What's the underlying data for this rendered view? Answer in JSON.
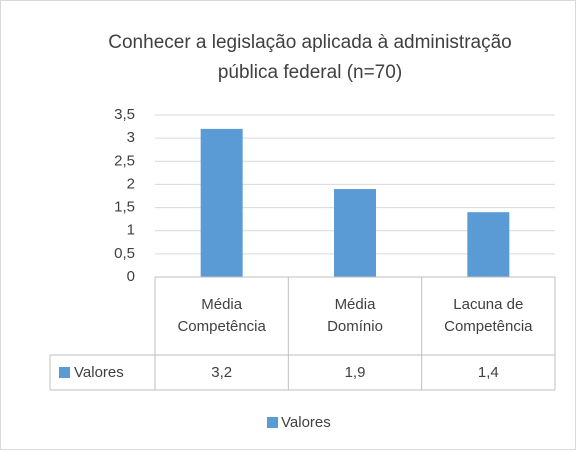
{
  "chart_data": {
    "type": "bar",
    "title": "Conhecer a legislação aplicada à administração pública federal (n=70)",
    "categories": [
      "Média Competência",
      "Média Domínio",
      "Lacuna de Competência"
    ],
    "series": [
      {
        "name": "Valores",
        "color": "#5b9bd5",
        "values": [
          3.2,
          1.9,
          1.4
        ],
        "value_labels": [
          "3,2",
          "1,9",
          "1,4"
        ]
      }
    ],
    "ylim": [
      0,
      3.5
    ],
    "yticks": [
      0,
      {
        "value": 0.5,
        "label": "0,5"
      },
      1,
      {
        "value": 1.5,
        "label": "1,5"
      },
      2,
      {
        "value": 2.5,
        "label": "2,5"
      },
      3,
      {
        "value": 3.5,
        "label": "3,5"
      }
    ],
    "grid": true,
    "data_table": true,
    "legend": "bottom"
  }
}
